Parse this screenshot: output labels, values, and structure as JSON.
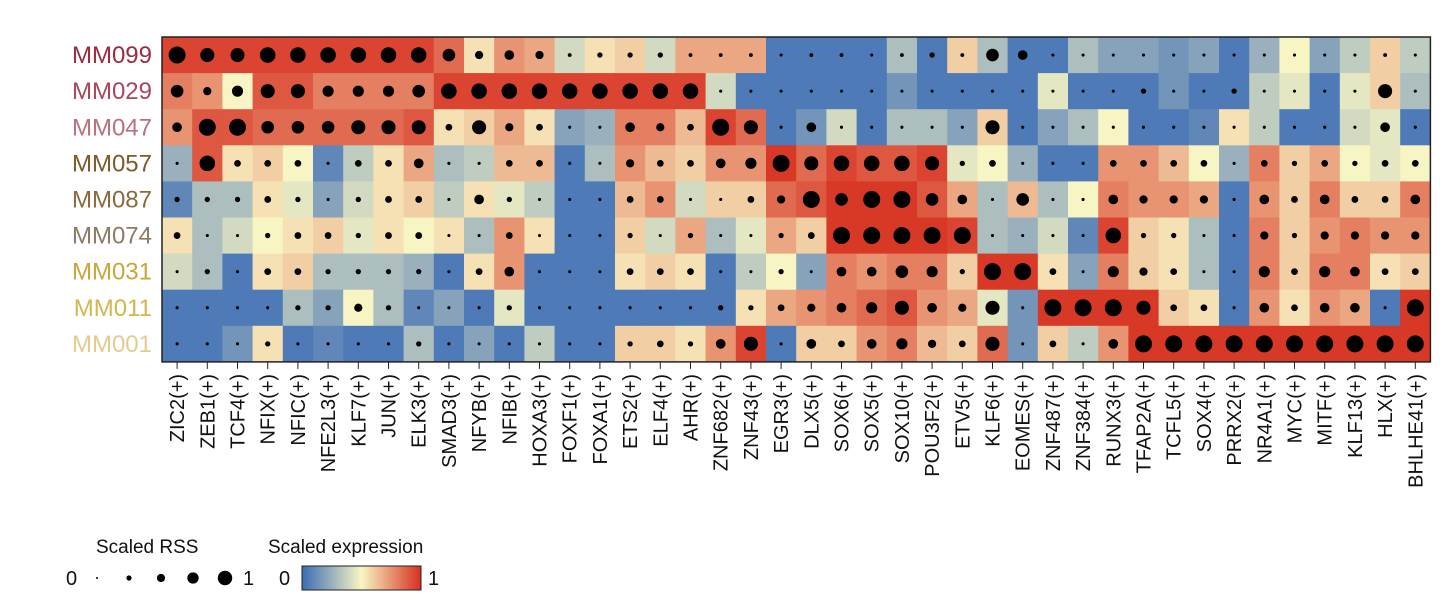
{
  "chart_data": {
    "type": "heatmap",
    "rows": [
      "MM099",
      "MM029",
      "MM047",
      "MM057",
      "MM087",
      "MM074",
      "MM031",
      "MM011",
      "MM001"
    ],
    "row_label_colors": [
      "#9c2b3e",
      "#a8475a",
      "#b5727f",
      "#7d5a2a",
      "#8a6a3c",
      "#8e7a62",
      "#c9a63c",
      "#d2b650",
      "#e3cc8e"
    ],
    "columns": [
      "ZIC2(+)",
      "ZEB1(+)",
      "TCF4(+)",
      "NFIX(+)",
      "NFIC(+)",
      "NFE2L3(+)",
      "KLF7(+)",
      "JUN(+)",
      "ELK3(+)",
      "SMAD3(+)",
      "NFYB(+)",
      "NFIB(+)",
      "HOXA3(+)",
      "FOXF1(+)",
      "FOXA1(+)",
      "ETS2(+)",
      "ELF4(+)",
      "AHR(+)",
      "ZNF682(+)",
      "ZNF43(+)",
      "EGR3(+)",
      "DLX5(+)",
      "SOX6(+)",
      "SOX5(+)",
      "SOX10(+)",
      "POU3F2(+)",
      "ETV5(+)",
      "KLF6(+)",
      "EOMES(+)",
      "ZNF487(+)",
      "ZNF384(+)",
      "RUNX3(+)",
      "TFAP2A(+)",
      "TCFL5(+)",
      "SOX4(+)",
      "PRRX2(+)",
      "NR4A1(+)",
      "MYC(+)",
      "MITF(+)",
      "KLF13(+)",
      "HLX(+)",
      "BHLHE41(+)"
    ],
    "expression": [
      [
        0.95,
        0.95,
        0.95,
        0.95,
        0.95,
        0.95,
        0.95,
        0.95,
        0.95,
        0.85,
        0.55,
        0.75,
        0.7,
        0.4,
        0.55,
        0.6,
        0.4,
        0.7,
        0.7,
        0.7,
        0.05,
        0.05,
        0.05,
        0.05,
        0.3,
        0.05,
        0.6,
        0.3,
        0.05,
        0.05,
        0.3,
        0.2,
        0.2,
        0.15,
        0.2,
        0.05,
        0.25,
        0.5,
        0.2,
        0.35,
        0.6,
        0.35
      ],
      [
        0.8,
        0.75,
        0.5,
        0.9,
        0.9,
        0.8,
        0.8,
        0.8,
        0.8,
        0.95,
        0.95,
        0.95,
        0.95,
        0.95,
        0.95,
        0.95,
        0.95,
        0.95,
        0.4,
        0.05,
        0.05,
        0.05,
        0.05,
        0.05,
        0.15,
        0.05,
        0.05,
        0.05,
        0.05,
        0.45,
        0.05,
        0.05,
        0.05,
        0.15,
        0.05,
        0.05,
        0.35,
        0.45,
        0.05,
        0.45,
        0.6,
        0.3
      ],
      [
        0.75,
        0.9,
        0.9,
        0.85,
        0.85,
        0.85,
        0.85,
        0.85,
        0.9,
        0.55,
        0.6,
        0.7,
        0.55,
        0.2,
        0.25,
        0.8,
        0.8,
        0.65,
        0.95,
        0.85,
        0.05,
        0.15,
        0.4,
        0.05,
        0.3,
        0.3,
        0.2,
        0.6,
        0.05,
        0.2,
        0.3,
        0.5,
        0.05,
        0.05,
        0.1,
        0.55,
        0.35,
        0.05,
        0.05,
        0.4,
        0.45,
        0.05
      ],
      [
        0.25,
        0.9,
        0.55,
        0.6,
        0.5,
        0.1,
        0.35,
        0.55,
        0.7,
        0.3,
        0.35,
        0.65,
        0.65,
        0.05,
        0.3,
        0.75,
        0.65,
        0.6,
        0.75,
        0.75,
        0.98,
        0.85,
        0.95,
        0.9,
        0.9,
        0.95,
        0.45,
        0.5,
        0.25,
        0.05,
        0.05,
        0.75,
        0.75,
        0.65,
        0.5,
        0.25,
        0.8,
        0.6,
        0.7,
        0.5,
        0.45,
        0.5
      ],
      [
        0.1,
        0.3,
        0.3,
        0.55,
        0.45,
        0.2,
        0.4,
        0.55,
        0.6,
        0.35,
        0.55,
        0.45,
        0.35,
        0.05,
        0.05,
        0.65,
        0.75,
        0.4,
        0.6,
        0.6,
        0.85,
        0.9,
        0.98,
        0.98,
        0.98,
        0.9,
        0.7,
        0.3,
        0.65,
        0.3,
        0.5,
        0.8,
        0.75,
        0.75,
        0.7,
        0.05,
        0.75,
        0.6,
        0.8,
        0.6,
        0.6,
        0.8
      ],
      [
        0.55,
        0.3,
        0.4,
        0.5,
        0.55,
        0.6,
        0.45,
        0.55,
        0.5,
        0.55,
        0.3,
        0.75,
        0.55,
        0.05,
        0.05,
        0.6,
        0.4,
        0.7,
        0.3,
        0.45,
        0.7,
        0.6,
        0.98,
        0.98,
        0.98,
        0.98,
        0.95,
        0.3,
        0.25,
        0.4,
        0.1,
        0.95,
        0.6,
        0.55,
        0.3,
        0.05,
        0.8,
        0.6,
        0.75,
        0.8,
        0.75,
        0.75
      ],
      [
        0.4,
        0.3,
        0.05,
        0.55,
        0.6,
        0.3,
        0.3,
        0.3,
        0.25,
        0.05,
        0.55,
        0.75,
        0.05,
        0.05,
        0.05,
        0.55,
        0.6,
        0.55,
        0.05,
        0.35,
        0.5,
        0.2,
        0.8,
        0.75,
        0.8,
        0.8,
        0.6,
        0.98,
        0.98,
        0.55,
        0.2,
        0.8,
        0.6,
        0.55,
        0.3,
        0.05,
        0.8,
        0.6,
        0.8,
        0.8,
        0.55,
        0.6
      ],
      [
        0.05,
        0.05,
        0.05,
        0.05,
        0.3,
        0.2,
        0.5,
        0.3,
        0.1,
        0.2,
        0.05,
        0.45,
        0.05,
        0.05,
        0.05,
        0.05,
        0.05,
        0.05,
        0.05,
        0.55,
        0.7,
        0.75,
        0.8,
        0.85,
        0.9,
        0.75,
        0.7,
        0.45,
        0.15,
        0.98,
        0.98,
        0.98,
        0.98,
        0.6,
        0.55,
        0.05,
        0.75,
        0.55,
        0.75,
        0.7,
        0.05,
        0.98
      ],
      [
        0.05,
        0.05,
        0.15,
        0.55,
        0.05,
        0.1,
        0.05,
        0.05,
        0.3,
        0.05,
        0.2,
        0.05,
        0.35,
        0.05,
        0.05,
        0.6,
        0.6,
        0.55,
        0.75,
        0.95,
        0.05,
        0.6,
        0.6,
        0.75,
        0.8,
        0.65,
        0.6,
        0.85,
        0.15,
        0.6,
        0.35,
        0.75,
        0.98,
        0.98,
        0.98,
        0.98,
        0.98,
        0.98,
        0.98,
        0.98,
        0.98,
        0.98
      ]
    ],
    "rss": [
      [
        1,
        0.8,
        0.8,
        0.9,
        0.9,
        0.9,
        0.9,
        0.9,
        0.9,
        0.7,
        0.4,
        0.5,
        0.4,
        0.1,
        0.2,
        0.2,
        0.2,
        0.1,
        0.1,
        0.1,
        0.05,
        0.1,
        0.1,
        0.05,
        0.1,
        0.2,
        0.1,
        0.7,
        0.5,
        0.05,
        0.05,
        0.05,
        0.05,
        0.05,
        0.05,
        0.05,
        0.05,
        0.05,
        0.05,
        0.05,
        0.1,
        0.05
      ],
      [
        0.7,
        0.4,
        0.6,
        0.8,
        0.8,
        0.6,
        0.6,
        0.6,
        0.7,
        0.9,
        0.9,
        0.9,
        0.9,
        0.9,
        0.9,
        0.9,
        0.9,
        0.9,
        0.05,
        0.05,
        0.05,
        0.05,
        0.05,
        0.05,
        0.05,
        0.05,
        0.05,
        0.05,
        0.05,
        0.05,
        0.05,
        0.05,
        0.2,
        0.05,
        0.05,
        0.2,
        0.05,
        0.05,
        0.05,
        0.05,
        0.8,
        0.05
      ],
      [
        0.5,
        1,
        1,
        0.7,
        0.7,
        0.7,
        0.8,
        0.8,
        0.8,
        0.3,
        0.8,
        0.4,
        0.3,
        0.05,
        0.05,
        0.5,
        0.4,
        0.3,
        1,
        0.8,
        0.05,
        0.5,
        0.05,
        0.05,
        0.05,
        0.05,
        0.05,
        0.8,
        0.05,
        0.05,
        0.05,
        0.05,
        0.05,
        0.05,
        0.05,
        0.05,
        0.05,
        0.05,
        0.05,
        0.05,
        0.5,
        0.05
      ],
      [
        0.05,
        0.9,
        0.3,
        0.3,
        0.3,
        0.05,
        0.3,
        0.3,
        0.5,
        0.05,
        0.05,
        0.3,
        0.3,
        0.05,
        0.05,
        0.4,
        0.3,
        0.3,
        0.5,
        0.6,
        1,
        0.8,
        0.9,
        0.9,
        0.9,
        0.8,
        0.2,
        0.3,
        0.05,
        0.05,
        0.05,
        0.3,
        0.3,
        0.3,
        0.3,
        0.05,
        0.3,
        0.2,
        0.3,
        0.2,
        0.3,
        0.3
      ],
      [
        0.2,
        0.2,
        0.2,
        0.3,
        0.2,
        0.05,
        0.2,
        0.3,
        0.3,
        0.05,
        0.5,
        0.2,
        0.05,
        0.05,
        0.05,
        0.3,
        0.3,
        0.05,
        0.05,
        0.3,
        0.4,
        1,
        0.7,
        1,
        1,
        0.7,
        0.5,
        0.05,
        0.7,
        0.05,
        0.05,
        0.5,
        0.4,
        0.4,
        0.4,
        0.05,
        0.5,
        0.3,
        0.5,
        0.3,
        0.3,
        0.5
      ],
      [
        0.3,
        0.05,
        0.05,
        0.2,
        0.3,
        0.3,
        0.2,
        0.3,
        0.3,
        0.05,
        0.05,
        0.3,
        0.05,
        0.05,
        0.05,
        0.2,
        0.05,
        0.2,
        0.05,
        0.05,
        0.2,
        0.3,
        1,
        1,
        1,
        1,
        1,
        0.05,
        0.05,
        0.05,
        0.05,
        0.9,
        0.2,
        0.2,
        0.05,
        0.05,
        0.4,
        0.2,
        0.4,
        0.4,
        0.4,
        0.4
      ],
      [
        0.05,
        0.2,
        0.05,
        0.3,
        0.3,
        0.2,
        0.2,
        0.2,
        0.2,
        0.05,
        0.3,
        0.5,
        0.05,
        0.05,
        0.05,
        0.3,
        0.3,
        0.3,
        0.05,
        0.05,
        0.2,
        0.05,
        0.5,
        0.5,
        0.7,
        0.6,
        0.2,
        1,
        1,
        0.3,
        0.05,
        0.6,
        0.4,
        0.3,
        0.05,
        0.05,
        0.6,
        0.3,
        0.6,
        0.5,
        0.3,
        0.3
      ],
      [
        0.05,
        0.05,
        0.05,
        0.05,
        0.2,
        0.2,
        0.4,
        0.2,
        0.05,
        0.05,
        0.05,
        0.2,
        0.05,
        0.05,
        0.05,
        0.05,
        0.05,
        0.05,
        0.2,
        0.2,
        0.3,
        0.4,
        0.5,
        0.6,
        0.8,
        0.5,
        0.4,
        0.8,
        0.05,
        1,
        1,
        1,
        0.8,
        0.3,
        0.3,
        0.05,
        0.5,
        0.3,
        0.5,
        0.5,
        0.05,
        1
      ],
      [
        0.05,
        0.05,
        0.05,
        0.2,
        0.05,
        0.05,
        0.05,
        0.05,
        0.2,
        0.05,
        0.05,
        0.05,
        0.05,
        0.05,
        0.05,
        0.2,
        0.3,
        0.2,
        0.5,
        0.8,
        0.05,
        0.5,
        0.3,
        0.5,
        0.6,
        0.4,
        0.3,
        0.8,
        0.05,
        0.3,
        0.05,
        0.5,
        1,
        1,
        1,
        1,
        1,
        1,
        1,
        1,
        1,
        1
      ]
    ],
    "legend": {
      "rss_title": "Scaled RSS",
      "rss_min_label": "0",
      "rss_max_label": "1",
      "expression_title": "Scaled expression",
      "expression_min_label": "0",
      "expression_max_label": "1"
    },
    "colormap": [
      "#3b6cb5",
      "#f8f5c4",
      "#d7301f"
    ]
  }
}
